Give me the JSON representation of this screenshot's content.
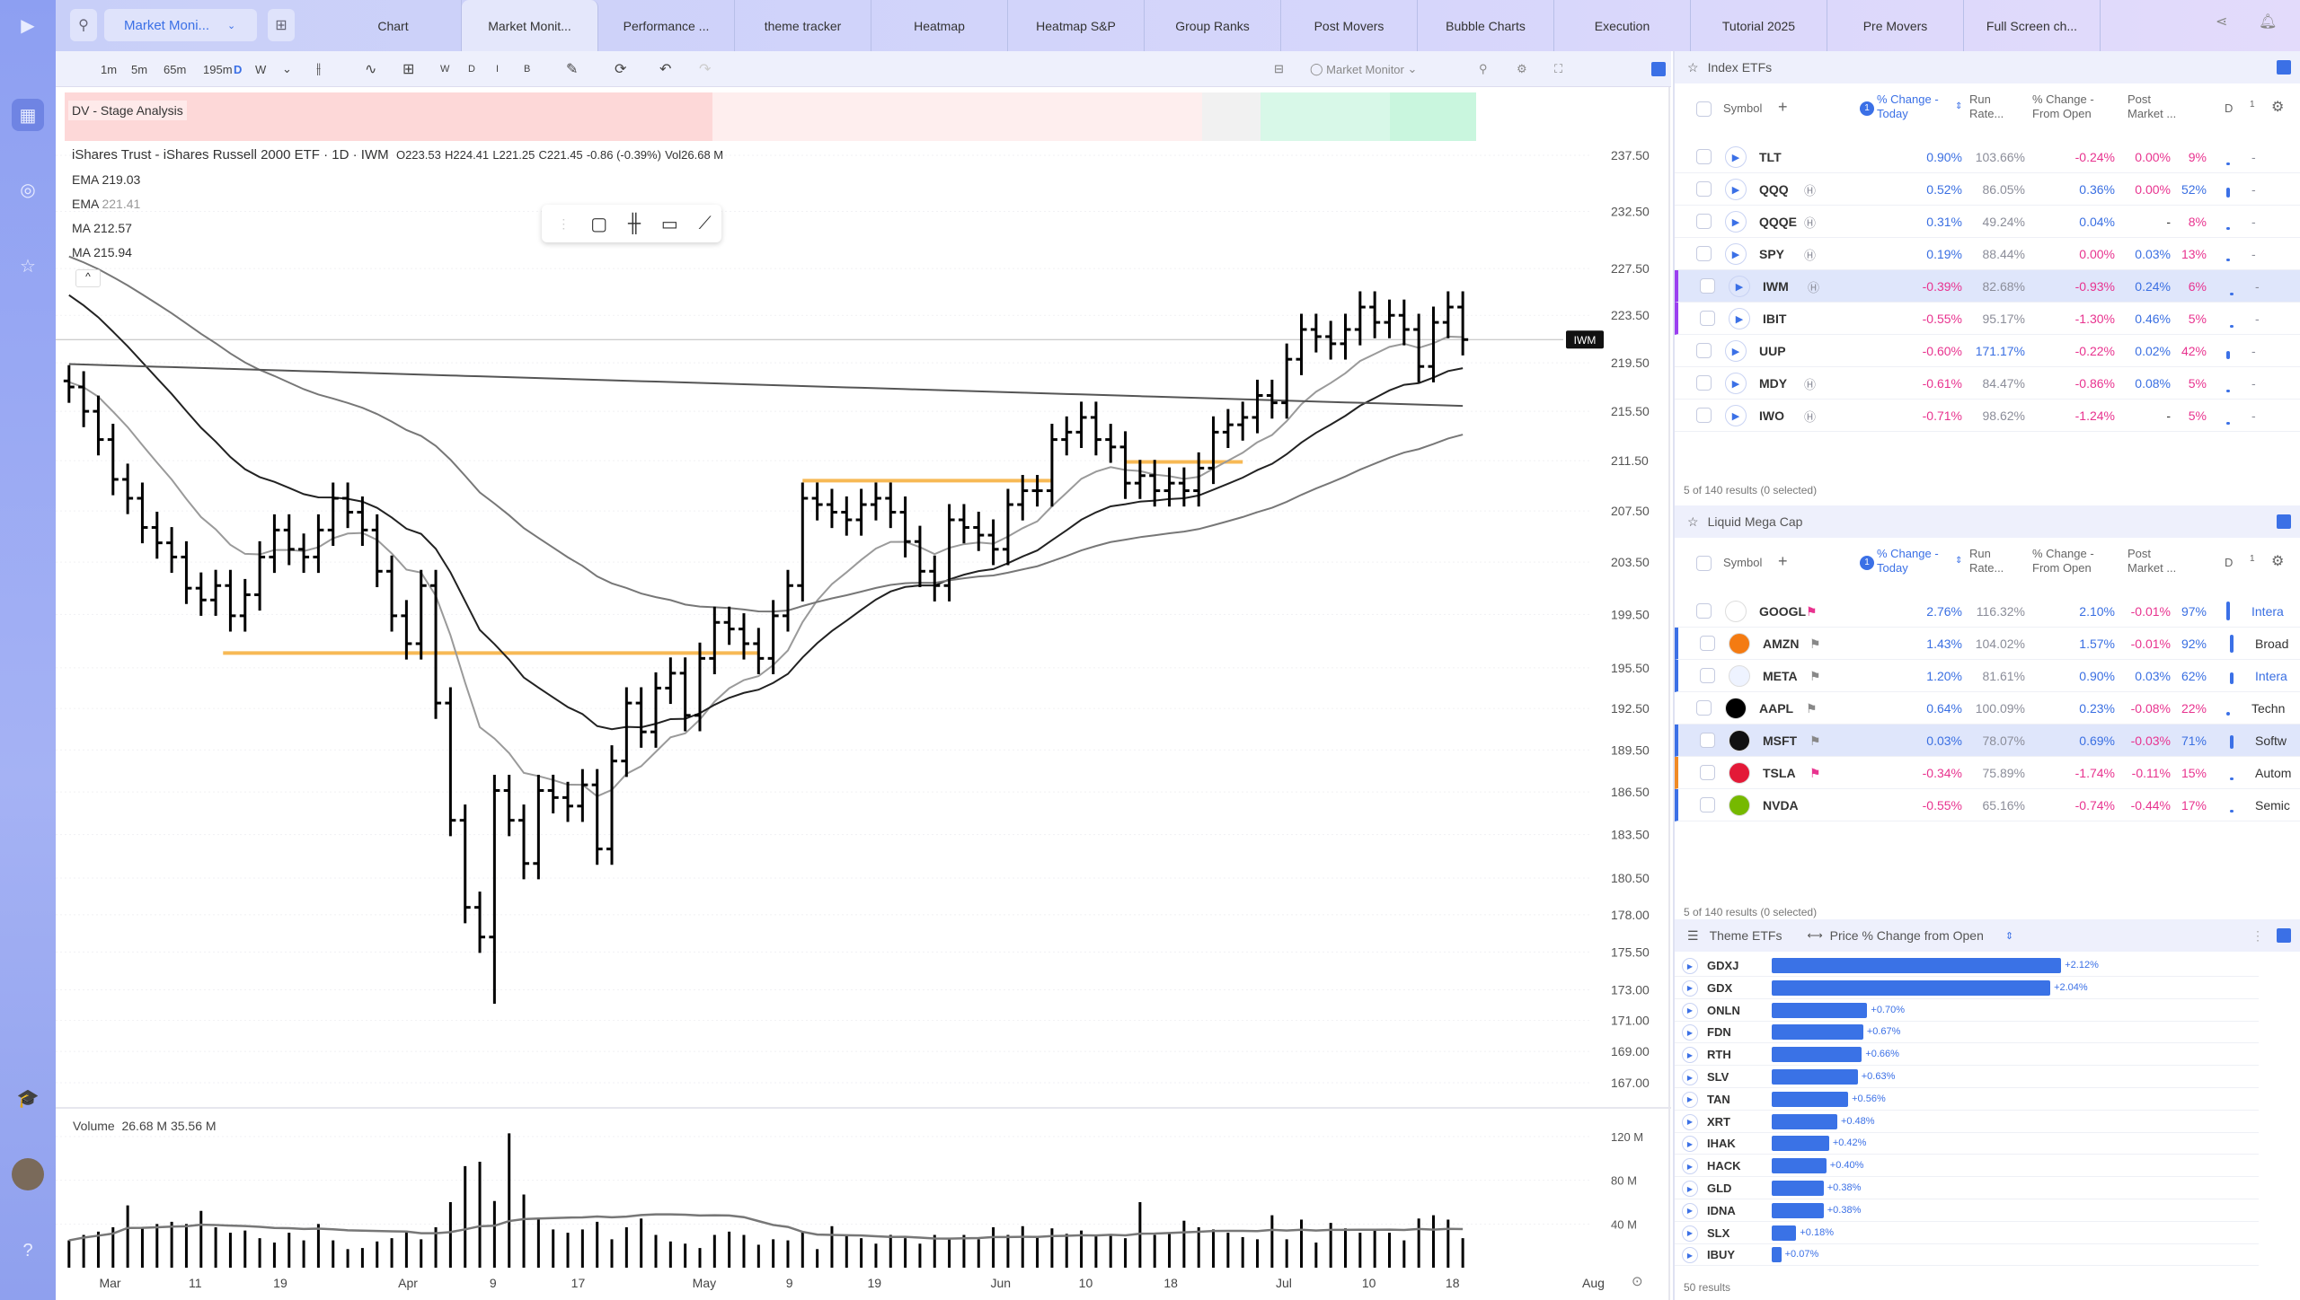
{
  "topbar": {
    "workspace": "Market Moni...",
    "tabs": [
      "Chart",
      "Market Monit...",
      "Performance ...",
      "theme tracker",
      "Heatmap",
      "Heatmap S&P",
      "Group Ranks",
      "Post Movers",
      "Bubble Charts",
      "Execution",
      "Tutorial 2025",
      "Pre Movers",
      "Full Screen ch..."
    ],
    "active_tab": 1
  },
  "chart_toolbar": {
    "intervals": [
      "1m",
      "5m",
      "65m",
      "195m",
      "D",
      "W"
    ],
    "active_interval": "D",
    "mode_buttons": [
      "W",
      "D",
      "I",
      "B"
    ],
    "layout_name": "Market Monitor"
  },
  "chart": {
    "stage_label": "DV - Stage Analysis",
    "stages": [
      {
        "color": "#fdd8d8",
        "bars": 45
      },
      {
        "color": "#feeeee",
        "bars": 34
      },
      {
        "color": "#f1f1f1",
        "bars": 4
      },
      {
        "color": "#d8f8e8",
        "bars": 9
      },
      {
        "color": "#c9f6de",
        "bars": 6
      }
    ],
    "title": "iShares Trust - iShares Russell 2000 ETF · 1D · IWM",
    "ohlc": {
      "o": "O223.53",
      "h": "H224.41",
      "l": "L221.25",
      "c": "C221.45",
      "chg": "-0.86 (-0.39%)",
      "vol": "Vol26.68 M"
    },
    "indicators": [
      {
        "name": "EMA",
        "value": "219.03",
        "type": "ema",
        "period": 10,
        "seed": 218,
        "color": "#9a9a9a"
      },
      {
        "name": "EMA",
        "value": "221.41",
        "type": "ema",
        "period": 21,
        "seed": 226,
        "color": "#222222"
      },
      {
        "name": "MA",
        "value": "212.57",
        "type": "ema",
        "period": 50,
        "seed": 229,
        "color": "#777777"
      },
      {
        "name": "MA",
        "value": "215.94",
        "type": "line",
        "from": 219.4,
        "to": 215.94,
        "color": "#555555"
      }
    ],
    "symbol_tag": "IWM",
    "price_ticks": [
      "237.50",
      "232.50",
      "227.50",
      "223.50",
      "219.50",
      "215.50",
      "211.50",
      "207.50",
      "203.50",
      "199.50",
      "195.50",
      "192.50",
      "189.50",
      "186.50",
      "183.50",
      "180.50",
      "178.00",
      "175.50",
      "173.00",
      "171.00",
      "169.00",
      "167.00"
    ],
    "date_ticks": [
      {
        "label": "Mar",
        "bar": 2.8
      },
      {
        "label": "11",
        "bar": 8.6
      },
      {
        "label": "19",
        "bar": 14.4
      },
      {
        "label": "Apr",
        "bar": 23.1
      },
      {
        "label": "9",
        "bar": 28.9
      },
      {
        "label": "17",
        "bar": 34.7
      },
      {
        "label": "May",
        "bar": 43.3
      },
      {
        "label": "9",
        "bar": 49.1
      },
      {
        "label": "19",
        "bar": 54.9
      },
      {
        "label": "Jun",
        "bar": 63.5
      },
      {
        "label": "10",
        "bar": 69.3
      },
      {
        "label": "18",
        "bar": 75.1
      },
      {
        "label": "Jul",
        "bar": 82.8
      },
      {
        "label": "10",
        "bar": 88.6
      },
      {
        "label": "18",
        "bar": 94.3
      },
      {
        "label": "Aug",
        "bar": 103.9
      }
    ],
    "levels": [
      {
        "price": 196.6,
        "from": 10.5,
        "to": 47
      },
      {
        "price": 209.9,
        "from": 50,
        "to": 67
      },
      {
        "price": 211.4,
        "from": 72,
        "to": 80
      }
    ],
    "volume_label": "Volume",
    "volume_values": [
      "26.68 M",
      "35.56 M"
    ],
    "volume_ticks": [
      "120 M",
      "80 M",
      "40 M"
    ]
  },
  "chart_data": {
    "type": "ohlc",
    "title": "iShares Trust - iShares Russell 2000 ETF · 1D · IWM",
    "ylabel": "Price",
    "ylim": [
      167,
      237.5
    ],
    "scale": "log",
    "closes": [
      217.5,
      215.5,
      213.2,
      210,
      208.5,
      206.2,
      205,
      203.9,
      201.5,
      200.6,
      201.7,
      199.4,
      201,
      203.9,
      206,
      204.5,
      203.9,
      206,
      208.5,
      207.4,
      206,
      202.8,
      199.4,
      197.3,
      201.7,
      192.9,
      184.5,
      178.5,
      176.5,
      186.6,
      184.5,
      181.5,
      186.6,
      186.1,
      185.5,
      187,
      182.5,
      188.7,
      192.9,
      190.8,
      194,
      195.1,
      192,
      196.2,
      198.9,
      198.4,
      197.3,
      196.2,
      199.4,
      201.7,
      208.5,
      208,
      207.4,
      206.8,
      208,
      208.5,
      207.4,
      205.1,
      202.8,
      201.7,
      206.8,
      206.2,
      205.6,
      204.5,
      208,
      209.1,
      209.1,
      213.2,
      213.8,
      215,
      213.2,
      212.6,
      209.7,
      210.3,
      209.1,
      209.7,
      209.1,
      210.9,
      213.8,
      214.4,
      215,
      216.8,
      216.2,
      219.8,
      222.3,
      221.7,
      221.1,
      222.3,
      224.2,
      222.9,
      223.5,
      222.3,
      219.2,
      222.9,
      224.2,
      221.45
    ],
    "volumes_m": [
      25,
      30,
      33,
      37,
      57,
      37,
      40,
      42,
      40,
      52,
      37,
      32,
      34,
      27,
      23,
      32,
      25,
      40,
      25,
      17,
      18,
      24,
      27,
      33,
      26,
      37,
      60,
      93,
      97,
      61,
      123,
      67,
      45,
      35,
      32,
      35,
      42,
      26,
      37,
      45,
      30,
      24,
      22,
      18,
      30,
      33,
      30,
      21,
      26,
      25,
      33,
      17,
      38,
      30,
      27,
      22,
      30,
      27,
      22,
      30,
      27,
      30,
      26,
      37,
      30,
      38,
      28,
      36,
      31,
      34,
      30,
      30,
      27,
      60,
      30,
      32,
      43,
      37,
      35,
      32,
      28,
      26,
      48,
      26,
      44,
      23,
      41,
      36,
      32,
      34,
      32,
      25,
      45,
      48,
      44,
      27
    ]
  },
  "index_etfs": {
    "title": "Index ETFs",
    "headers": {
      "symbol": "Symbol",
      "chg": "% Change - Today",
      "run": "Run Rate...",
      "open": "% Change - From Open",
      "post": "Post Market ...",
      "d": "D",
      "n": "1"
    },
    "sort_badge": "1",
    "rows": [
      {
        "sym": "TLT",
        "h": false,
        "chg": "0.90%",
        "run": "103.66%",
        "open": "-0.24%",
        "post": "0.00%",
        "d": "9%",
        "extra": "-"
      },
      {
        "sym": "QQQ",
        "h": true,
        "chg": "0.52%",
        "run": "86.05%",
        "open": "0.36%",
        "post": "0.00%",
        "d": "52%",
        "extra": "-"
      },
      {
        "sym": "QQQE",
        "h": true,
        "chg": "0.31%",
        "run": "49.24%",
        "open": "0.04%",
        "post": "-",
        "d": "8%",
        "extra": "-"
      },
      {
        "sym": "SPY",
        "h": true,
        "chg": "0.19%",
        "run": "88.44%",
        "open": "0.00%",
        "post": "0.03%",
        "d": "13%",
        "extra": "-"
      },
      {
        "sym": "IWM",
        "h": true,
        "chg": "-0.39%",
        "run": "82.68%",
        "open": "-0.93%",
        "post": "0.24%",
        "d": "6%",
        "extra": "-",
        "sel": true,
        "edge": "#9b3ff0"
      },
      {
        "sym": "IBIT",
        "h": false,
        "chg": "-0.55%",
        "run": "95.17%",
        "open": "-1.30%",
        "post": "0.46%",
        "d": "5%",
        "extra": "-",
        "edge": "#9b3ff0"
      },
      {
        "sym": "UUP",
        "h": false,
        "chg": "-0.60%",
        "run": "171.17%",
        "open": "-0.22%",
        "post": "0.02%",
        "d": "42%",
        "extra": "-"
      },
      {
        "sym": "MDY",
        "h": true,
        "chg": "-0.61%",
        "run": "84.47%",
        "open": "-0.86%",
        "post": "0.08%",
        "d": "5%",
        "extra": "-"
      },
      {
        "sym": "IWO",
        "h": true,
        "chg": "-0.71%",
        "run": "98.62%",
        "open": "-1.24%",
        "post": "-",
        "d": "5%",
        "extra": "-"
      }
    ],
    "footer": "5 of 140 results (0 selected)"
  },
  "mega_cap": {
    "title": "Liquid Mega Cap",
    "footer": "5 of 140 results (0 selected)",
    "rows": [
      {
        "sym": "GOOGL",
        "logo": "#ffffff",
        "flag": "#e8338f",
        "chg": "2.76%",
        "run": "116.32%",
        "open": "2.10%",
        "post": "-0.01%",
        "d": "97%",
        "extra": "Intera",
        "extraBlue": true
      },
      {
        "sym": "AMZN",
        "logo": "#f47b12",
        "flag": "#888",
        "chg": "1.43%",
        "run": "104.02%",
        "open": "1.57%",
        "post": "-0.01%",
        "d": "92%",
        "extra": "Broad",
        "edge": "#3b70e6"
      },
      {
        "sym": "META",
        "logo": "#eef3ff",
        "flag": "#888",
        "chg": "1.20%",
        "run": "81.61%",
        "open": "0.90%",
        "post": "0.03%",
        "d": "62%",
        "extra": "Intera",
        "extraBlue": true,
        "edge": "#3b70e6"
      },
      {
        "sym": "AAPL",
        "logo": "#000000",
        "flag": "#888",
        "chg": "0.64%",
        "run": "100.09%",
        "open": "0.23%",
        "post": "-0.08%",
        "d": "22%",
        "extra": "Techn"
      },
      {
        "sym": "MSFT",
        "logo": "#111111",
        "flag": "#888",
        "chg": "0.03%",
        "run": "78.07%",
        "open": "0.69%",
        "post": "-0.03%",
        "d": "71%",
        "extra": "Softw",
        "sel": true,
        "edge": "#3b70e6"
      },
      {
        "sym": "TSLA",
        "logo": "#e31937",
        "flag": "#e8338f",
        "chg": "-0.34%",
        "run": "75.89%",
        "open": "-1.74%",
        "post": "-0.11%",
        "d": "15%",
        "extra": "Autom",
        "edge": "#f08a24"
      },
      {
        "sym": "NVDA",
        "logo": "#76b900",
        "flag": null,
        "chg": "-0.55%",
        "run": "65.16%",
        "open": "-0.74%",
        "post": "-0.44%",
        "d": "17%",
        "extra": "Semic",
        "edge": "#3b70e6"
      }
    ]
  },
  "theme_etfs": {
    "title": "Theme ETFs",
    "metric": "Price % Change from Open",
    "footer": "50 results",
    "bar_color": "#3a72e6",
    "rows": [
      {
        "sym": "GDXJ",
        "v": 2.12
      },
      {
        "sym": "GDX",
        "v": 2.04
      },
      {
        "sym": "ONLN",
        "v": 0.7
      },
      {
        "sym": "FDN",
        "v": 0.67
      },
      {
        "sym": "RTH",
        "v": 0.66
      },
      {
        "sym": "SLV",
        "v": 0.63
      },
      {
        "sym": "TAN",
        "v": 0.56
      },
      {
        "sym": "XRT",
        "v": 0.48
      },
      {
        "sym": "IHAK",
        "v": 0.42
      },
      {
        "sym": "HACK",
        "v": 0.4
      },
      {
        "sym": "GLD",
        "v": 0.38
      },
      {
        "sym": "IDNA",
        "v": 0.38
      },
      {
        "sym": "SLX",
        "v": 0.18
      },
      {
        "sym": "IBUY",
        "v": 0.07
      }
    ],
    "labels": [
      "+2.12%",
      "+2.04%",
      "+0.70%",
      "+0.67%",
      "+0.66%",
      "+0.63%",
      "+0.56%",
      "+0.48%",
      "+0.42%",
      "+0.40%",
      "+0.38%",
      "+0.38%",
      "+0.18%",
      "+0.07%"
    ]
  }
}
